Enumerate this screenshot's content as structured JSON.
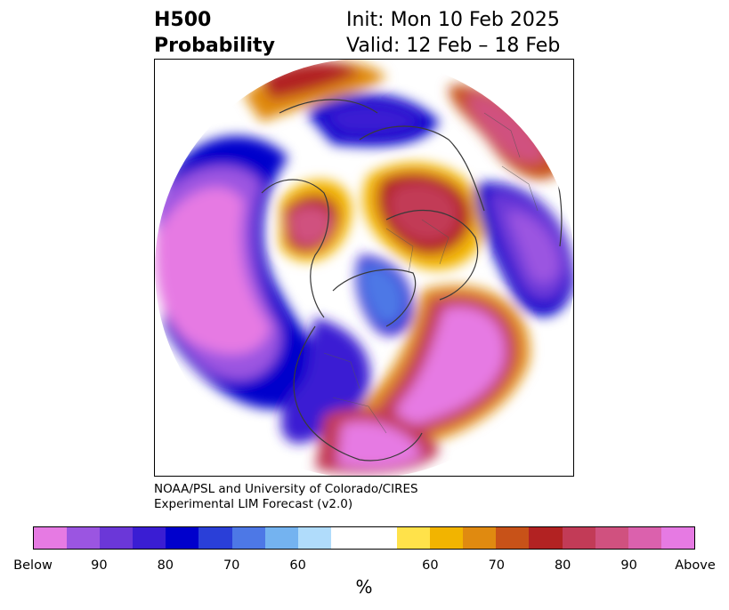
{
  "title": {
    "line1": "H500",
    "line2": "Probability",
    "init": "Init: Mon 10 Feb 2025",
    "valid": "Valid: 12 Feb – 18 Feb"
  },
  "credit": {
    "line1": "NOAA/PSL and University of Colorado/CIRES",
    "line2": "Experimental LIM Forecast (v2.0)"
  },
  "colorbar": {
    "colors": [
      "#e67ae3",
      "#9b55e1",
      "#6b37d8",
      "#3a1dd3",
      "#0000cc",
      "#2a3fd8",
      "#4d78e6",
      "#74b3f0",
      "#b0dcfb",
      "#ffffff",
      "#ffffff",
      "#ffe24a",
      "#f2b400",
      "#e08a10",
      "#c85218",
      "#b22222",
      "#c23b57",
      "#d0517f",
      "#db61ad",
      "#e67ae3"
    ],
    "labels": [
      "Below",
      "90",
      "80",
      "70",
      "60",
      "60",
      "70",
      "80",
      "90",
      "Above"
    ],
    "unit": "%"
  },
  "map": {
    "projection": "north-polar-stereographic",
    "variable": "500-hPa height tercile probability"
  }
}
